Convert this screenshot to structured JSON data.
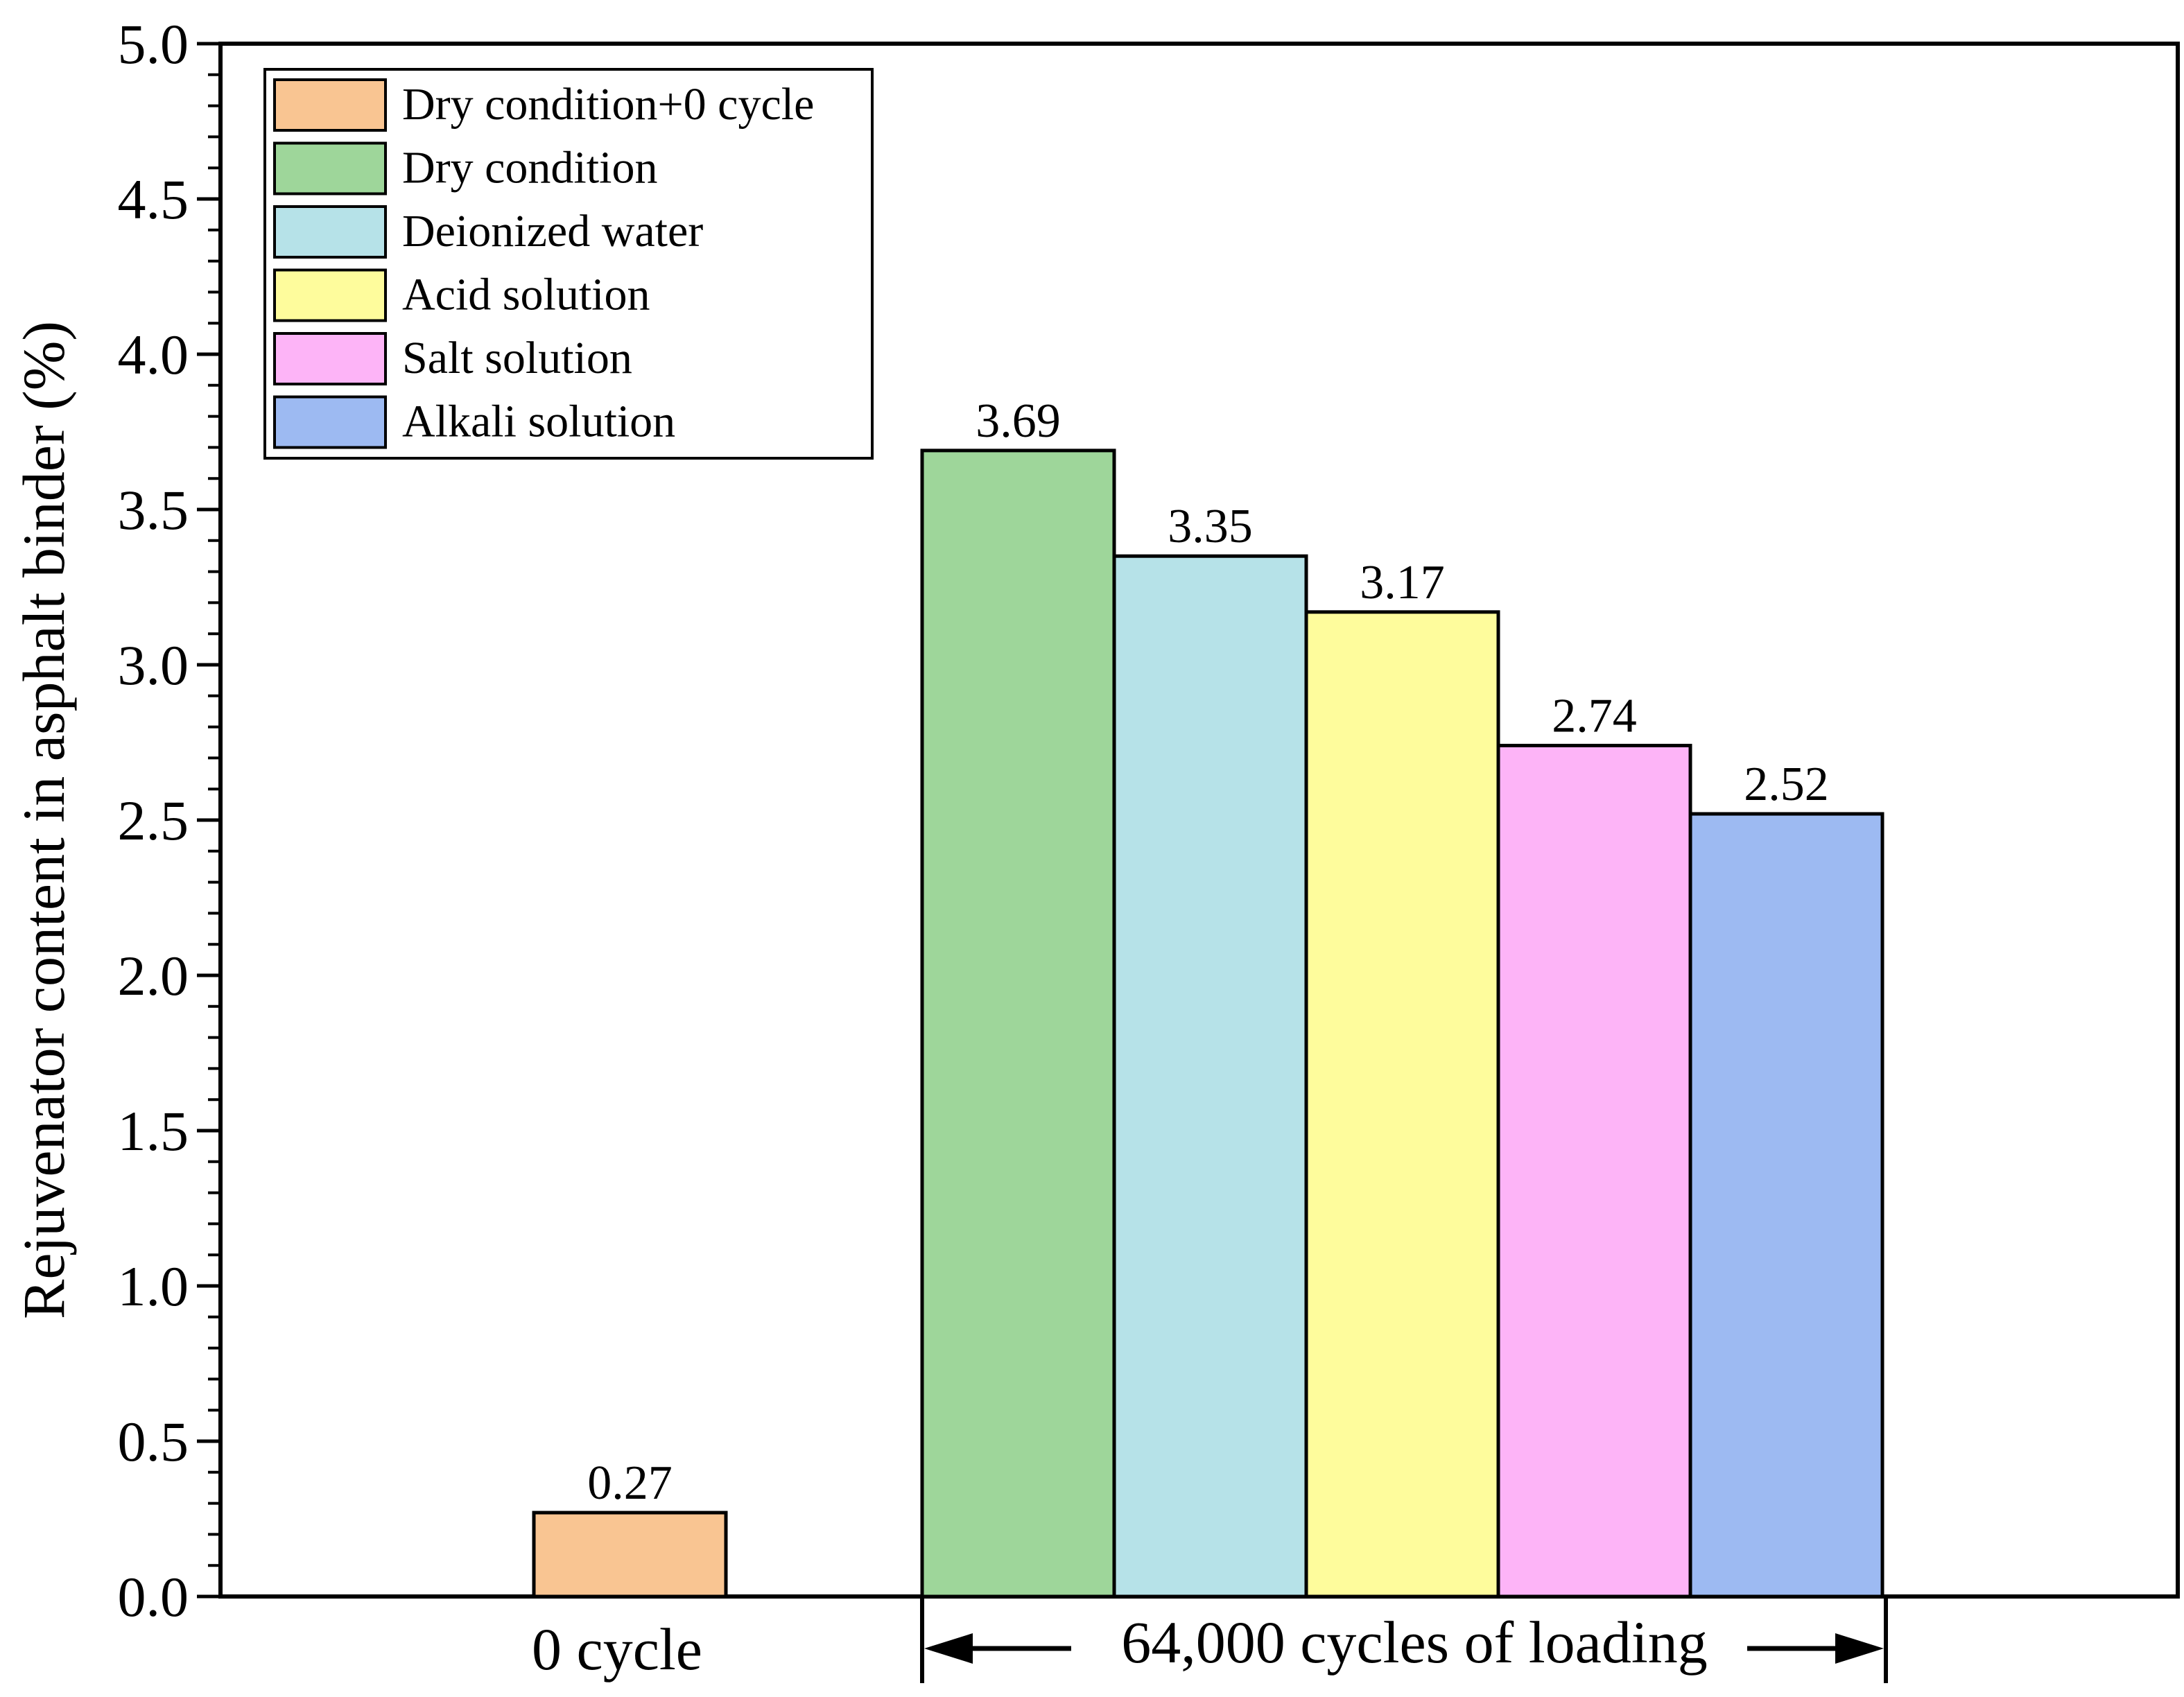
{
  "chart_data": {
    "type": "bar",
    "title": "",
    "ylabel": "Rejuvenator content in asphalt binder (%)",
    "xlabel": "",
    "ylim": [
      0,
      5.0
    ],
    "yticks": [
      "0.0",
      "0.5",
      "1.0",
      "1.5",
      "2.0",
      "2.5",
      "3.0",
      "3.5",
      "4.0",
      "4.5",
      "5.0"
    ],
    "legend_position": "top-left",
    "groups": [
      {
        "label": "0 cycle"
      },
      {
        "label": "64,000 cycles of loading"
      }
    ],
    "series": [
      {
        "name": "Dry condition+0 cycle",
        "group": 0,
        "value": 0.27,
        "value_label": "0.27",
        "color": "#F9C592"
      },
      {
        "name": "Dry condition",
        "group": 1,
        "value": 3.69,
        "value_label": "3.69",
        "color": "#9ED69A"
      },
      {
        "name": "Deionized water",
        "group": 1,
        "value": 3.35,
        "value_label": "3.35",
        "color": "#B6E2E8"
      },
      {
        "name": "Acid solution",
        "group": 1,
        "value": 3.17,
        "value_label": "3.17",
        "color": "#FEFC9C"
      },
      {
        "name": "Salt solution",
        "group": 1,
        "value": 2.74,
        "value_label": "2.74",
        "color": "#FDB4F7"
      },
      {
        "name": "Alkali solution",
        "group": 1,
        "value": 2.52,
        "value_label": "2.52",
        "color": "#9DBAF2"
      }
    ]
  }
}
